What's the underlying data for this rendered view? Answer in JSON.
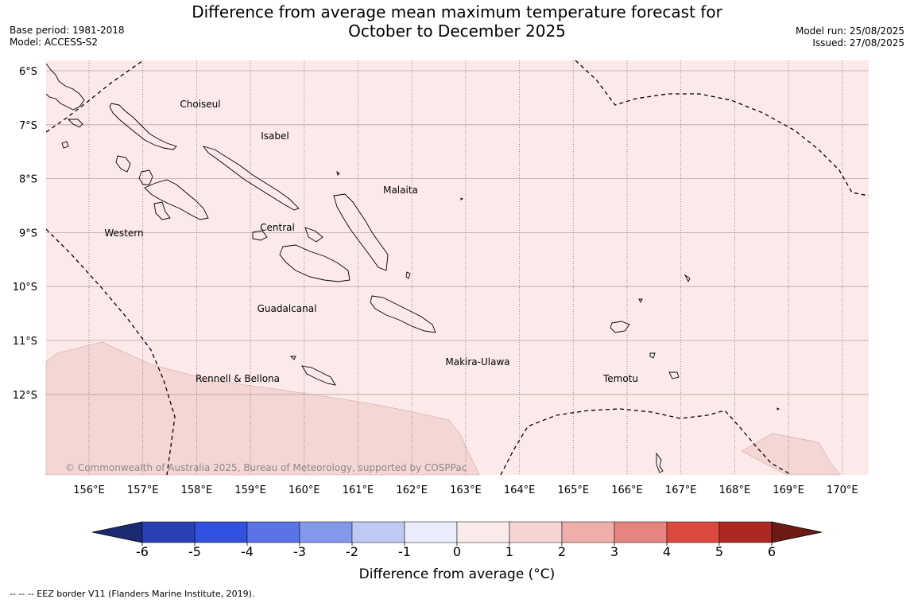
{
  "title": {
    "line1": "Difference from average mean maximum temperature forecast for",
    "line2": "October to December 2025"
  },
  "left_meta": {
    "base_period": "Base period: 1981-2018",
    "model": "Model: ACCESS-S2"
  },
  "right_meta": {
    "model_run": "Model run: 25/08/2025",
    "issued": "Issued: 27/08/2025"
  },
  "map": {
    "lat_labels": [
      "6°S",
      "7°S",
      "8°S",
      "9°S",
      "10°S",
      "11°S",
      "12°S"
    ],
    "lon_labels": [
      "156°E",
      "157°E",
      "158°E",
      "159°E",
      "160°E",
      "161°E",
      "162°E",
      "163°E",
      "164°E",
      "165°E",
      "166°E",
      "167°E",
      "168°E",
      "169°E",
      "170°E"
    ],
    "region_labels": [
      "Choiseul",
      "Isabel",
      "Malaita",
      "Western",
      "Central",
      "Guadalcanal",
      "Makira-Ulawa",
      "Temotu",
      "Rennell & Bellona"
    ],
    "copyright": "© Commonwealth of Australia 2025, Bureau of Meteorology, supported by COSPPac",
    "background_class_color": "#fbeae9",
    "warmer_class_color": "#f4d6d4"
  },
  "colorbar": {
    "label": "Difference from average (°C)",
    "ticks": [
      "-6",
      "-5",
      "-4",
      "-3",
      "-2",
      "-1",
      "0",
      "1",
      "2",
      "3",
      "4",
      "5",
      "6"
    ],
    "colors": [
      "#1b2a72",
      "#2a41b5",
      "#3151de",
      "#5a73e6",
      "#8499ec",
      "#c0c9f4",
      "#e9edfb",
      "#fbeaea",
      "#f5d5d3",
      "#eeaeab",
      "#e6857f",
      "#dc4a3f",
      "#ac2822",
      "#6d1a15"
    ]
  },
  "footnote": "--  --  -- EEZ border V11 (Flanders Marine Institute, 2019)."
}
